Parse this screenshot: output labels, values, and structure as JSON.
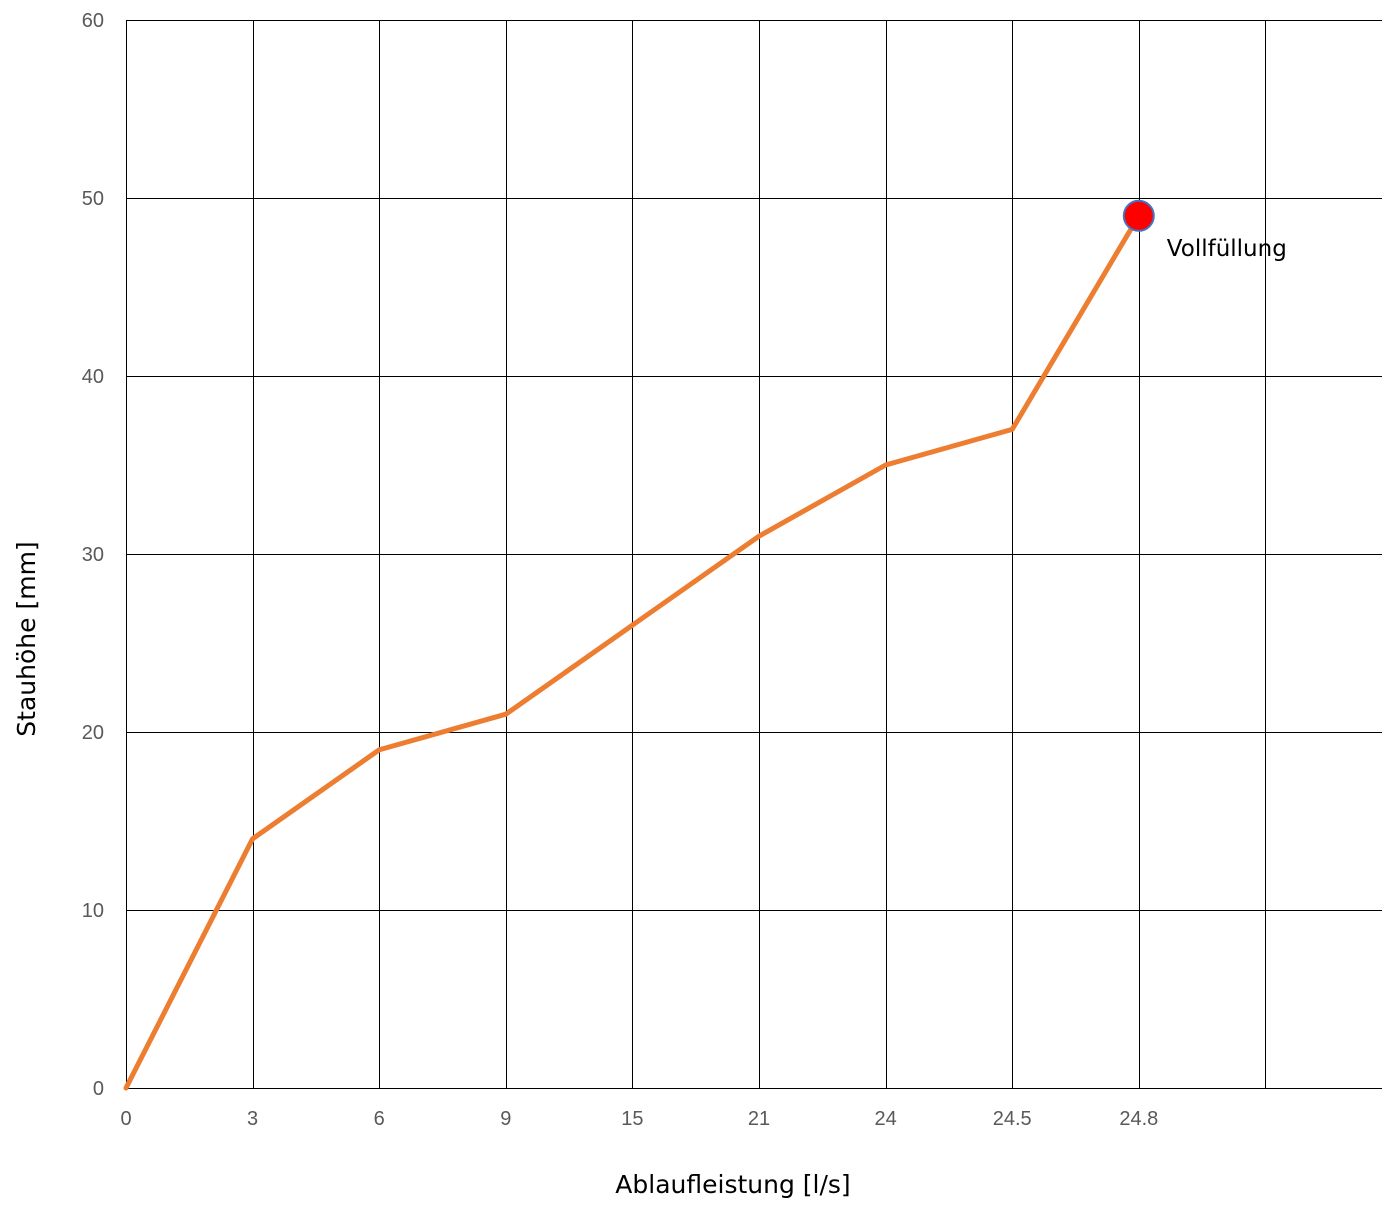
{
  "chart_data": {
    "type": "line",
    "xlabel": "Ablaufleistung [l/s]",
    "ylabel": "Stauhöhe [mm]",
    "ylim": [
      0,
      60
    ],
    "yticks": [
      0,
      10,
      20,
      30,
      40,
      50,
      60
    ],
    "categories": [
      "0",
      "3",
      "6",
      "9",
      "15",
      "21",
      "24",
      "24.5",
      "24.8"
    ],
    "series": [
      {
        "values": [
          0,
          14,
          19,
          21,
          26,
          31,
          35,
          37,
          49
        ]
      }
    ],
    "highlight": {
      "category": "24.8",
      "value": 49,
      "label": "Vollfüllung",
      "color": "#ff0000",
      "border_color": "#4472c4"
    },
    "line_color": "#ed7d31",
    "grid": true,
    "legend": "none"
  }
}
